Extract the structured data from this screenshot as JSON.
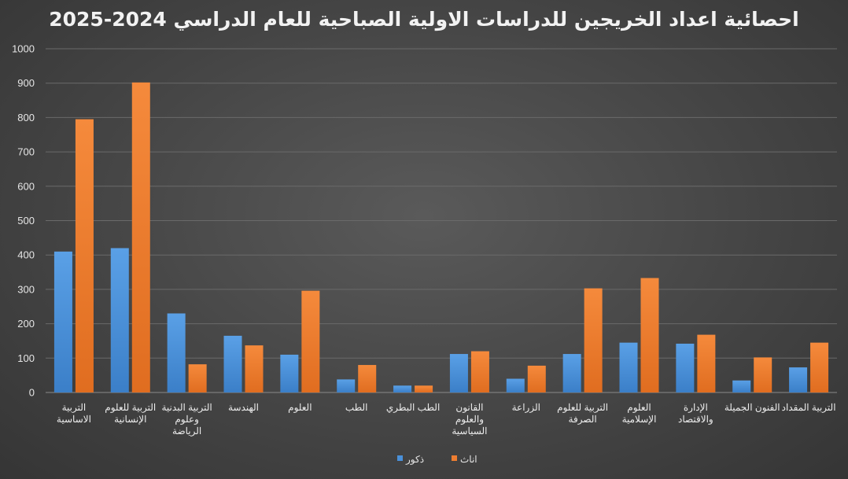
{
  "chart_data": {
    "type": "bar",
    "title": "احصائية اعداد الخريجين للدراسات الاولية الصباحية للعام الدراسي 2024-2025",
    "xlabel": "",
    "ylabel": "",
    "ylim": [
      0,
      1000
    ],
    "yticks": [
      0,
      100,
      200,
      300,
      400,
      500,
      600,
      700,
      800,
      900,
      1000
    ],
    "grid": true,
    "legend_position": "bottom",
    "categories": [
      [
        "التربية",
        "الاساسية"
      ],
      [
        "التربية للعلوم",
        "الإنسانية"
      ],
      [
        "التربية البدنية",
        "وعلوم",
        "الرياضة"
      ],
      [
        "الهندسة"
      ],
      [
        "العلوم"
      ],
      [
        "الطب"
      ],
      [
        "الطب البطري"
      ],
      [
        "القانون",
        "والعلوم",
        "السياسية"
      ],
      [
        "الزراعة"
      ],
      [
        "التربية للعلوم",
        "الصرفة"
      ],
      [
        "العلوم",
        "الإسلامية"
      ],
      [
        "الإدارة",
        "والاقتصاد"
      ],
      [
        "الفنون الجميلة"
      ],
      [
        "التربية المقداد"
      ]
    ],
    "series": [
      {
        "name": "ذكور",
        "color": "#4a90d9",
        "values": [
          410,
          420,
          230,
          165,
          110,
          38,
          20,
          112,
          40,
          112,
          145,
          142,
          35,
          73
        ]
      },
      {
        "name": "اناث",
        "color": "#ed7d31",
        "values": [
          795,
          902,
          82,
          137,
          296,
          80,
          20,
          120,
          78,
          303,
          333,
          168,
          102,
          145
        ]
      }
    ]
  }
}
